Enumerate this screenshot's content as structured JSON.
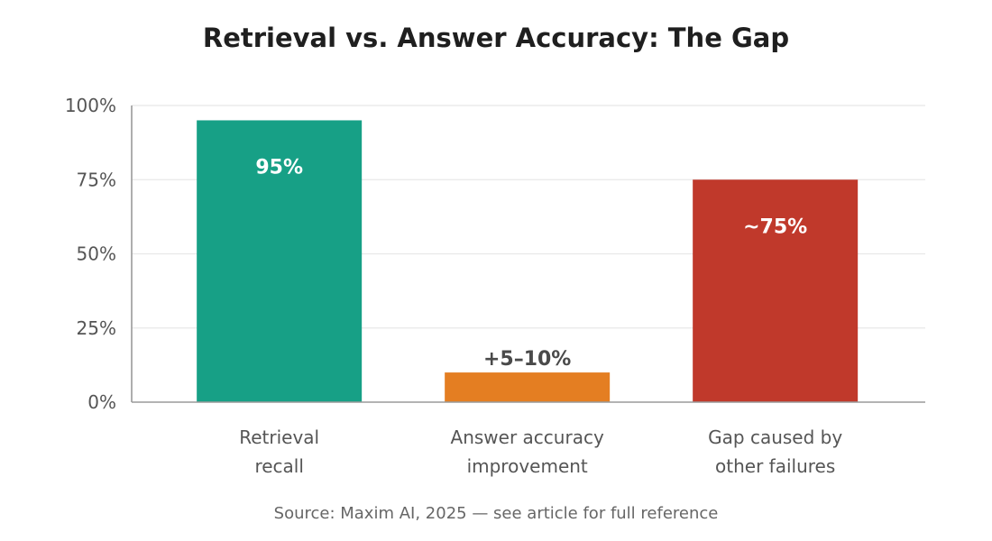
{
  "chart_data": {
    "type": "bar",
    "title": "Retrieval vs. Answer Accuracy: The Gap",
    "categories": [
      [
        "Retrieval",
        "recall"
      ],
      [
        "Answer accuracy",
        "improvement"
      ],
      [
        "Gap caused by",
        "other failures"
      ]
    ],
    "values": [
      95,
      10,
      75
    ],
    "data_labels": [
      "95%",
      "+5–10%",
      "~75%"
    ],
    "label_position": [
      "inside",
      "above",
      "inside"
    ],
    "colors": [
      "#17a086",
      "#e47e22",
      "#c0392b"
    ],
    "label_colors": [
      "#ffffff",
      "#4a4a4a",
      "#ffffff"
    ],
    "ylim": [
      0,
      100
    ],
    "yticks": [
      0,
      25,
      50,
      75,
      100
    ],
    "ytick_labels": [
      "0%",
      "25%",
      "50%",
      "75%",
      "100%"
    ],
    "grid": true,
    "source": "Source: Maxim AI, 2025 — see article for full reference"
  }
}
